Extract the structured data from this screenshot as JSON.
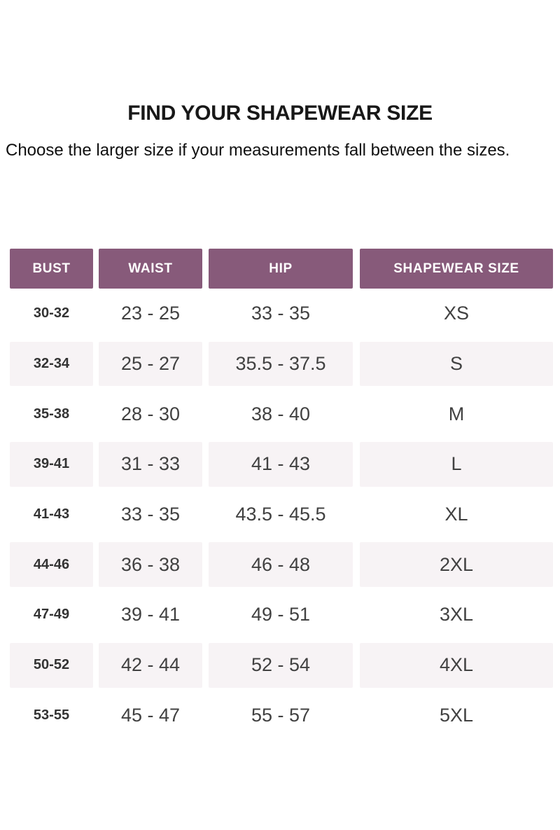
{
  "header": {
    "title": "FIND YOUR SHAPEWEAR SIZE",
    "subtitle": "Choose the larger size if your measurements fall between the sizes."
  },
  "table": {
    "headers": [
      "BUST",
      "WAIST",
      "HIP",
      "SHAPEWEAR SIZE"
    ],
    "rows": [
      {
        "bust": "30-32",
        "waist": "23 - 25",
        "hip": "33 - 35",
        "size": "XS"
      },
      {
        "bust": "32-34",
        "waist": "25 - 27",
        "hip": "35.5 - 37.5",
        "size": "S"
      },
      {
        "bust": "35-38",
        "waist": "28 - 30",
        "hip": "38 - 40",
        "size": "M"
      },
      {
        "bust": "39-41",
        "waist": "31 - 33",
        "hip": "41 - 43",
        "size": "L"
      },
      {
        "bust": "41-43",
        "waist": "33 - 35",
        "hip": "43.5 - 45.5",
        "size": "XL"
      },
      {
        "bust": "44-46",
        "waist": "36 - 38",
        "hip": "46 - 48",
        "size": "2XL"
      },
      {
        "bust": "47-49",
        "waist": "39 - 41",
        "hip": "49 - 51",
        "size": "3XL"
      },
      {
        "bust": "50-52",
        "waist": "42 - 44",
        "hip": "52 - 54",
        "size": "4XL"
      },
      {
        "bust": "53-55",
        "waist": "45 - 47",
        "hip": "55 - 57",
        "size": "5XL"
      }
    ]
  },
  "colors": {
    "header_bg": "#875A7A",
    "header_text": "#FFFFFF",
    "alt_row_bg": "#F7F3F5"
  }
}
